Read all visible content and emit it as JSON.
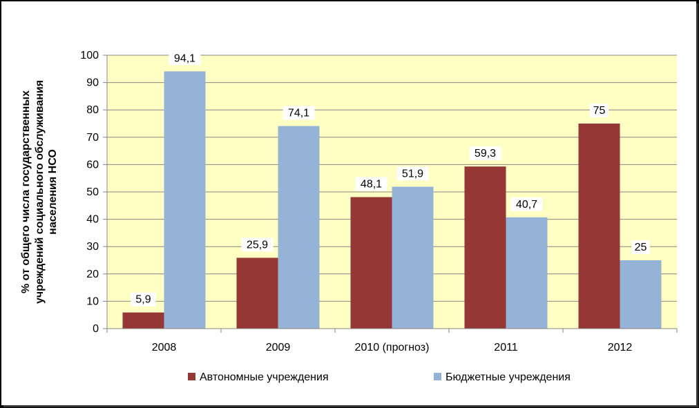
{
  "chart_data": {
    "type": "bar",
    "categories": [
      "2008",
      "2009",
      "2010 (прогноз)",
      "2011",
      "2012"
    ],
    "series": [
      {
        "name": "Автономные учреждения",
        "values": [
          5.9,
          25.9,
          48.1,
          59.3,
          75
        ],
        "labels": [
          "5,9",
          "25,9",
          "48,1",
          "59,3",
          "75"
        ],
        "color": "#953735"
      },
      {
        "name": "Бюджетные учреждения",
        "values": [
          94.1,
          74.1,
          51.9,
          40.7,
          25
        ],
        "labels": [
          "94,1",
          "74,1",
          "51,9",
          "40,7",
          "25"
        ],
        "color": "#95b3d7"
      }
    ],
    "ylabel_lines": [
      "% от общего числа государственных",
      "учреждений социального обслуживания",
      "населения НСО"
    ],
    "ylim": [
      0,
      100
    ],
    "yticks": [
      0,
      10,
      20,
      30,
      40,
      50,
      60,
      70,
      80,
      90,
      100
    ],
    "grid": true,
    "legend_position": "bottom",
    "plot_background": "#ffffc4"
  }
}
